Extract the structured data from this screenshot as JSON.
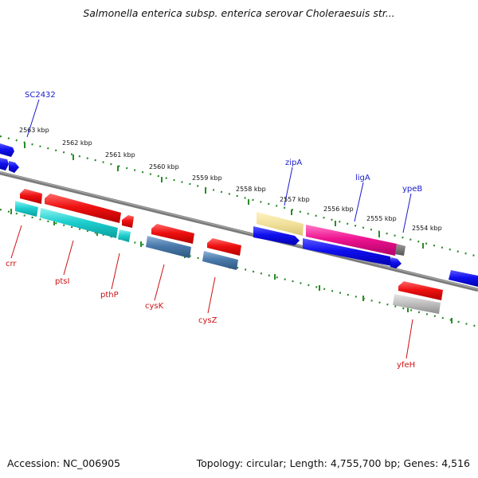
{
  "header": {
    "title": "Salmonella enterica subsp. enterica serovar Choleraesuis str..."
  },
  "footer": {
    "accession": "Accession: NC_006905",
    "summary": "Topology: circular; Length: 4,755,700 bp; Genes: 4,516"
  },
  "colors": {
    "backbone": "#808080",
    "ticks": "#2a8a2a",
    "forward_label": "#1a1acc",
    "reverse_label": "#cc1111"
  },
  "ruler": {
    "labels": [
      "2563 kbp",
      "2562 kbp",
      "2561 kbp",
      "2560 kbp",
      "2559 kbp",
      "2558 kbp",
      "2557 kbp",
      "2556 kbp",
      "2555 kbp",
      "2554 kbp"
    ]
  },
  "gene_labels": {
    "forward": [
      "SC2432",
      "zipA",
      "ligA",
      "ypeB"
    ],
    "reverse": [
      "crr",
      "ptsI",
      "pthP",
      "cysK",
      "cysZ",
      "yfeH"
    ]
  }
}
